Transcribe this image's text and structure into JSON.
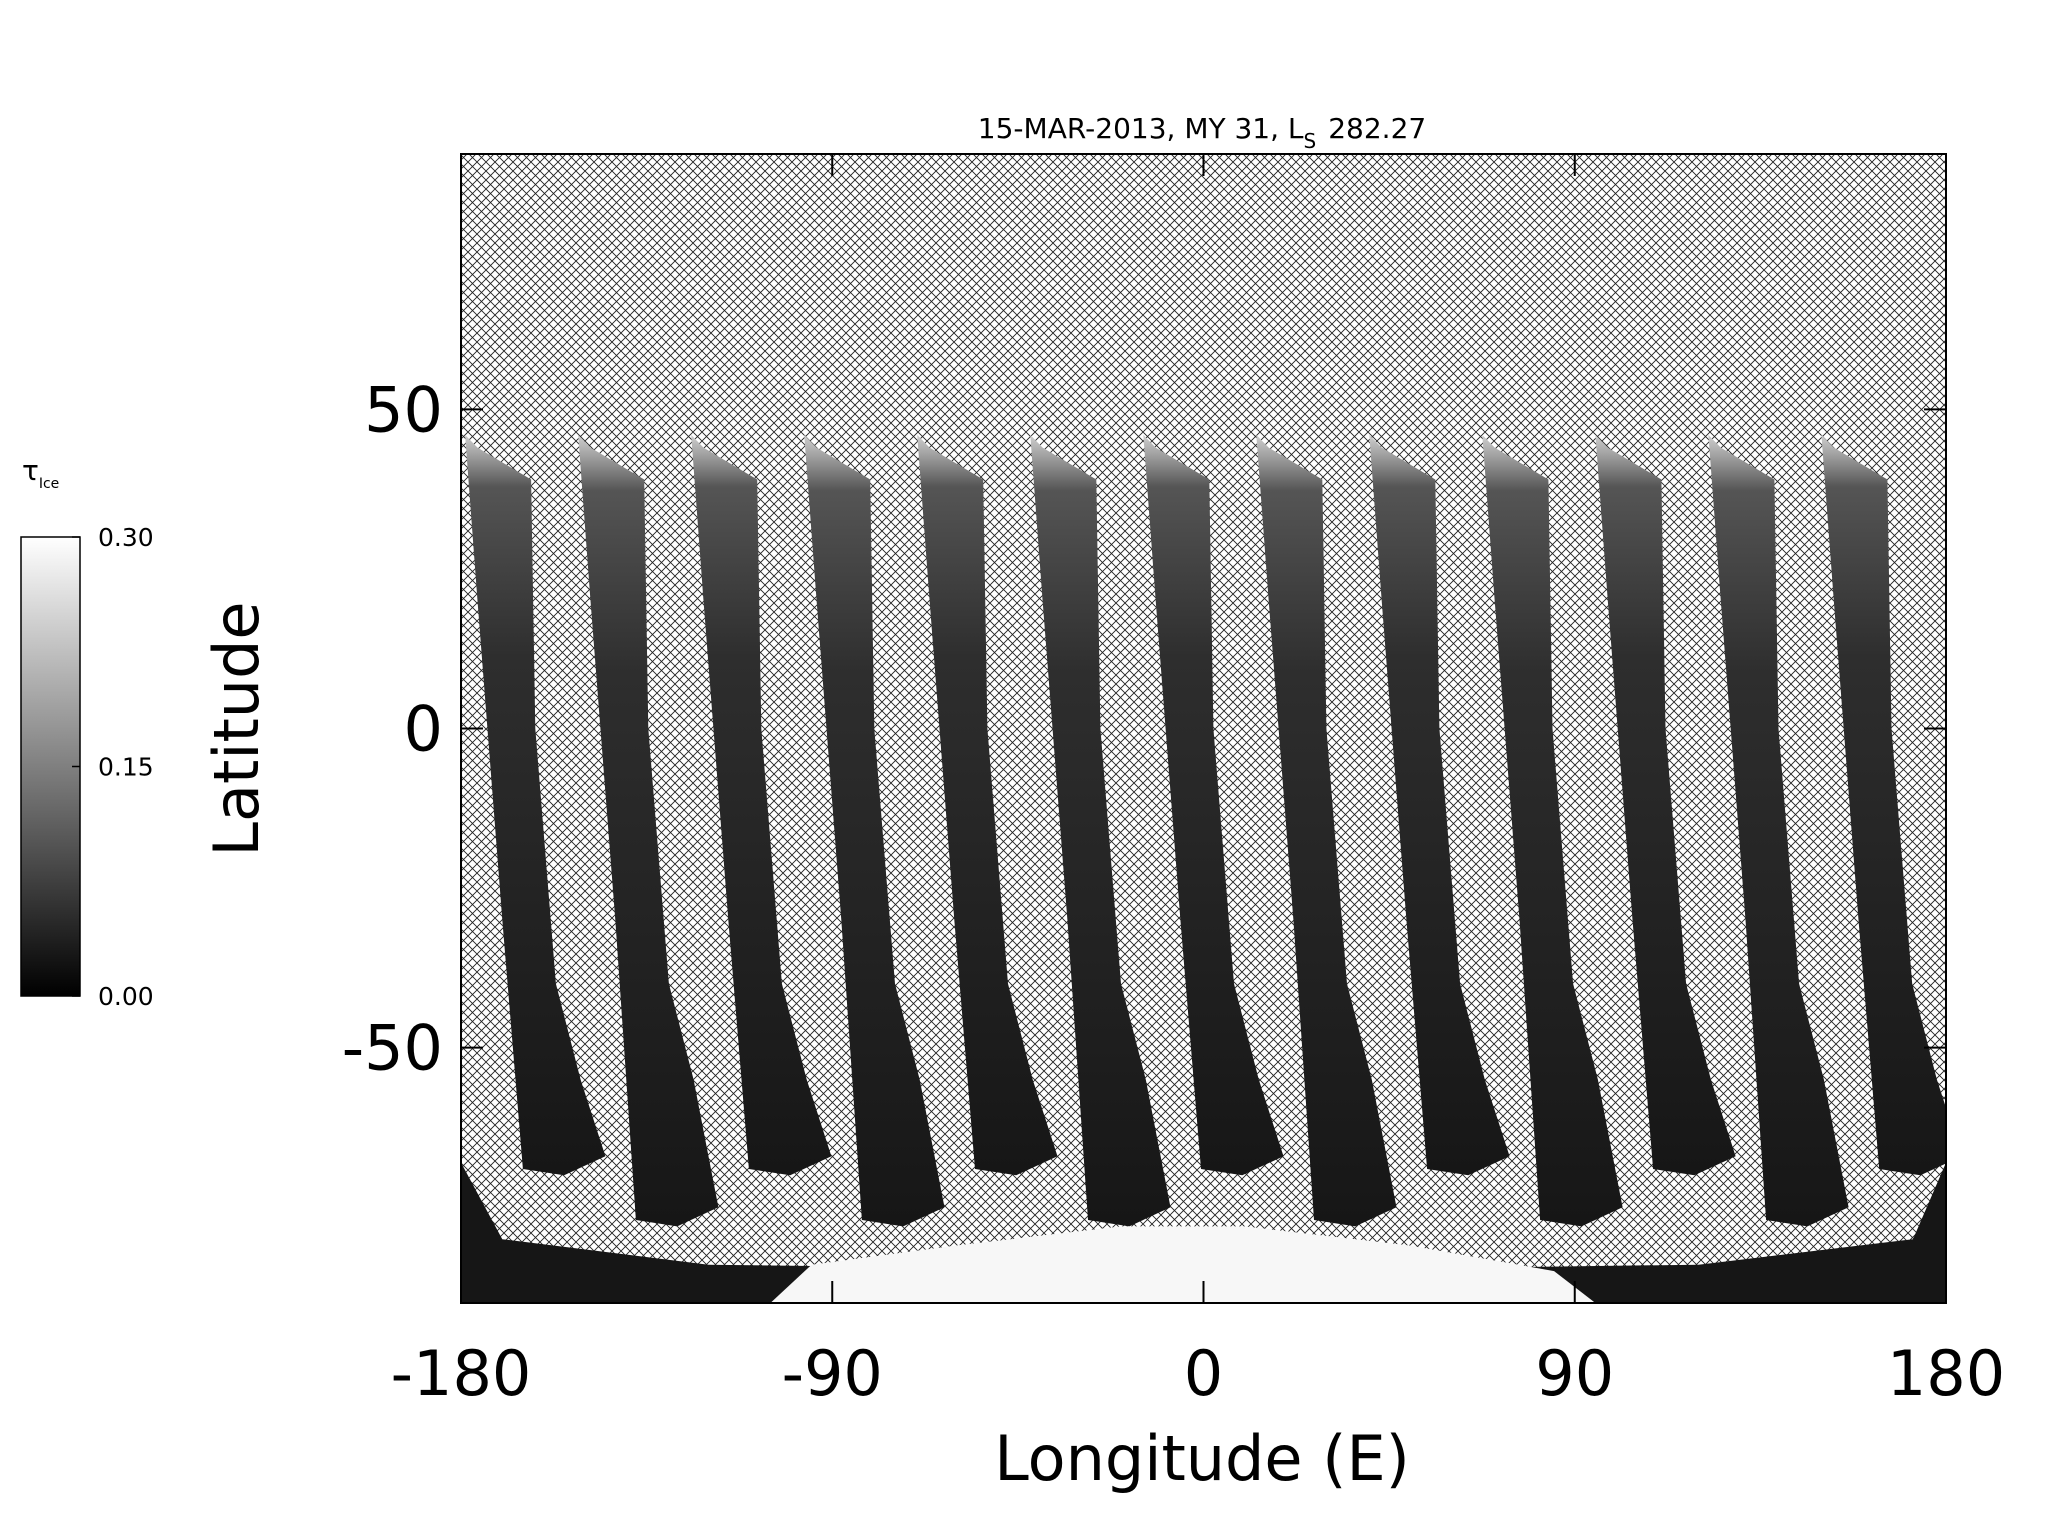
{
  "chart_data": {
    "type": "heatmap",
    "title": "15-MAR-2013, MY 31,  L",
    "title_subscript": "S",
    "title_suffix": "282.27",
    "xlabel": "Longitude (E)",
    "ylabel": "Latitude",
    "xlim": [
      -180,
      180
    ],
    "xticks": [
      -180,
      -90,
      0,
      90,
      180
    ],
    "ylim": [
      -90,
      90
    ],
    "yticks": [
      -50,
      0,
      50
    ],
    "colorbar": {
      "label": "τ",
      "label_subscript": "Ice",
      "lim": [
        0,
        0.3
      ],
      "ticks": [
        {
          "value": 0,
          "label": "0.00"
        },
        0.15,
        {
          "value": 0.3,
          "label": "0.30"
        }
      ]
    }
  }
}
